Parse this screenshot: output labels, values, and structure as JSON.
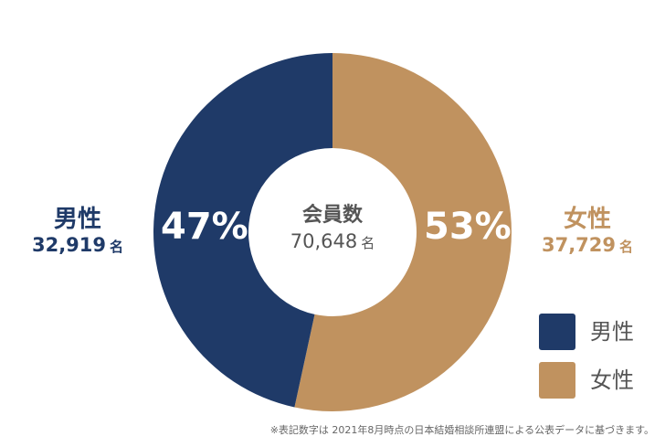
{
  "chart_data": {
    "type": "pie",
    "categories": [
      "男性",
      "女性"
    ],
    "values": [
      32919,
      37729
    ],
    "percent_labels": [
      "47%",
      "53%"
    ],
    "colors": [
      "#1f3a68",
      "#c0925f"
    ],
    "legend": [
      "男性",
      "女性"
    ],
    "legend_position": "bottom-right",
    "donut": true
  },
  "center": {
    "title": "会員数",
    "total": "70,648",
    "unit": "名"
  },
  "male": {
    "name": "男性",
    "count": "32,919",
    "unit": "名",
    "percent": "47%"
  },
  "female": {
    "name": "女性",
    "count": "37,729",
    "unit": "名",
    "percent": "53%"
  },
  "legend": {
    "male": "男性",
    "female": "女性"
  },
  "footnote": "※表記数字は 2021年8月時点の日本結婚相談所連盟による公表データに基づきます。"
}
